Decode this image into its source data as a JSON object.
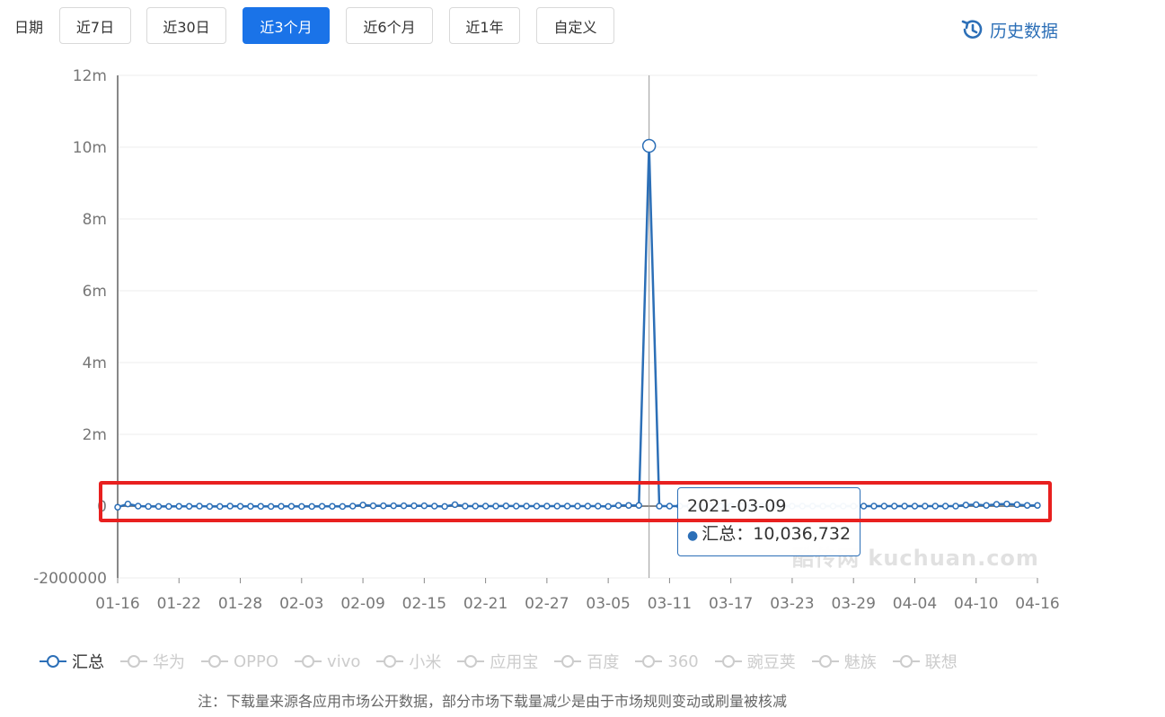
{
  "filter": {
    "date_label": "日期",
    "buttons": [
      "近7日",
      "近30日",
      "近3个月",
      "近6个月",
      "近1年",
      "自定义"
    ],
    "active_index": 2
  },
  "history_link": "历史数据",
  "tooltip": {
    "date": "2021-03-09",
    "series": "汇总",
    "value_text": "10,036,732"
  },
  "watermark": "酷传网 kuchuan.com",
  "note": "注：下载量来源各应用市场公开数据，部分市场下载量减少是由于市场规则变动或刷量被核减",
  "colors": {
    "accent": "#1a73e8",
    "series": "#2c6fb7",
    "highlight": "#e8201f"
  },
  "chart_data": {
    "type": "line",
    "x": [
      "01-16",
      "01-17",
      "01-18",
      "01-19",
      "01-20",
      "01-21",
      "01-22",
      "01-23",
      "01-24",
      "01-25",
      "01-26",
      "01-27",
      "01-28",
      "01-29",
      "01-30",
      "01-31",
      "02-01",
      "02-02",
      "02-03",
      "02-04",
      "02-05",
      "02-06",
      "02-07",
      "02-08",
      "02-09",
      "02-10",
      "02-11",
      "02-12",
      "02-13",
      "02-14",
      "02-15",
      "02-16",
      "02-17",
      "02-18",
      "02-19",
      "02-20",
      "02-21",
      "02-22",
      "02-23",
      "02-24",
      "02-25",
      "02-26",
      "02-27",
      "02-28",
      "03-01",
      "03-02",
      "03-03",
      "03-04",
      "03-05",
      "03-06",
      "03-07",
      "03-08",
      "03-09",
      "03-10",
      "03-11",
      "03-12",
      "03-13",
      "03-14",
      "03-15",
      "03-16",
      "03-17",
      "03-18",
      "03-19",
      "03-20",
      "03-21",
      "03-22",
      "03-23",
      "03-24",
      "03-25",
      "03-26",
      "03-27",
      "03-28",
      "03-29",
      "03-30",
      "03-31",
      "04-01",
      "04-02",
      "04-03",
      "04-04",
      "04-05",
      "04-06",
      "04-07",
      "04-08",
      "04-09",
      "04-10",
      "04-11",
      "04-12",
      "04-13",
      "04-14",
      "04-15",
      "04-16"
    ],
    "x_ticks": [
      "01-16",
      "01-22",
      "01-28",
      "02-03",
      "02-09",
      "02-15",
      "02-21",
      "02-27",
      "03-05",
      "03-11",
      "03-17",
      "03-23",
      "03-29",
      "04-04",
      "04-10",
      "04-16"
    ],
    "y_ticks": [
      "12m",
      "10m",
      "8m",
      "6m",
      "4m",
      "2m",
      "0",
      "-2000000"
    ],
    "ylim": [
      -2000000,
      12000000
    ],
    "series": [
      {
        "name": "汇总",
        "values": [
          -30000,
          60000,
          0,
          -10000,
          -10000,
          -10000,
          -5000,
          -5000,
          0,
          -10000,
          -10000,
          0,
          -5000,
          -5000,
          -5000,
          -10000,
          -5000,
          -5000,
          -10000,
          -10000,
          -5000,
          -5000,
          -10000,
          0,
          30000,
          10000,
          10000,
          10000,
          10000,
          10000,
          10000,
          0,
          -10000,
          40000,
          0,
          0,
          0,
          0,
          5000,
          0,
          0,
          0,
          0,
          0,
          0,
          0,
          0,
          0,
          -10000,
          20000,
          20000,
          20000,
          10036732,
          0,
          0,
          0,
          0,
          0,
          0,
          0,
          0,
          0,
          0,
          0,
          0,
          0,
          0,
          0,
          0,
          0,
          0,
          0,
          0,
          0,
          0,
          0,
          0,
          0,
          0,
          0,
          0,
          0,
          0,
          30000,
          40000,
          20000,
          50000,
          60000,
          40000,
          20000,
          20000
        ]
      },
      {
        "name": "华为"
      },
      {
        "name": "OPPO"
      },
      {
        "name": "vivo"
      },
      {
        "name": "小米"
      },
      {
        "name": "应用宝"
      },
      {
        "name": "百度"
      },
      {
        "name": "360"
      },
      {
        "name": "豌豆荚"
      },
      {
        "name": "魅族"
      },
      {
        "name": "联想"
      }
    ],
    "highlight_index": 52,
    "grid": true,
    "legend_position": "bottom"
  }
}
